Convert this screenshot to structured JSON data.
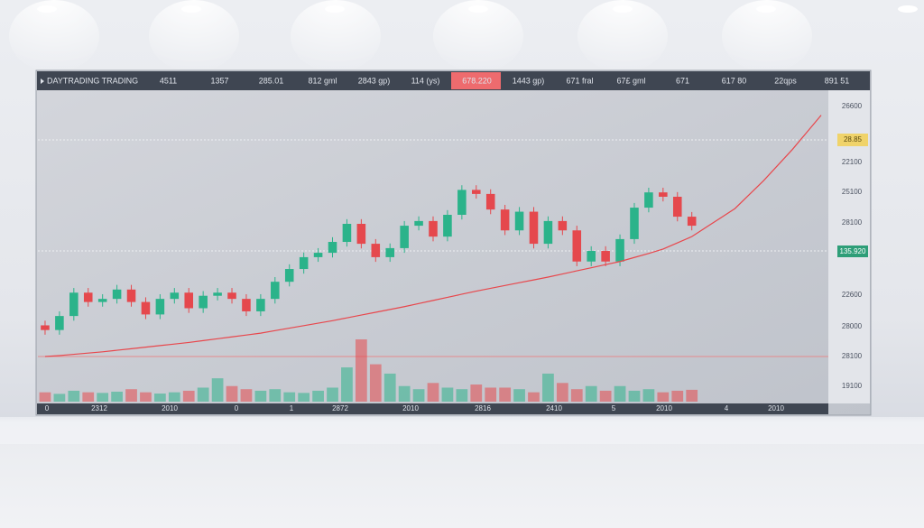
{
  "header": {
    "title": "DAYTRADING TRADING",
    "cells": [
      "4511",
      "1357",
      "285.01",
      "812 gml",
      "2843 gp)",
      "114 (ys)",
      "678.220",
      "1443 gp)",
      "671 fral",
      "67£ gml",
      "671",
      "617 80",
      "22qps",
      "891 51"
    ],
    "highlight": 6
  },
  "chart_data": {
    "type": "candlestick",
    "ylim": [
      0,
      100
    ],
    "up_color": "#2bb38a",
    "down_color": "#e5484d",
    "candles": {
      "open": [
        24.5,
        23,
        27.5,
        35,
        32,
        33,
        36,
        32,
        28,
        33,
        35,
        30,
        34,
        35,
        33,
        29,
        33,
        38.5,
        42.6,
        46.4,
        47.8,
        51.3,
        57.1,
        50.7,
        46.4,
        49.3,
        56.5,
        58,
        53,
        60,
        68,
        66.7,
        61.7,
        55,
        61,
        50.7,
        58,
        55,
        45,
        48.4,
        45,
        52.2,
        62.3,
        67.2,
        65.8,
        59.4
      ],
      "high": [
        26,
        29,
        36.5,
        36.5,
        34.5,
        37.5,
        37.5,
        33.5,
        34.5,
        36.5,
        36.5,
        35.5,
        36.5,
        36.5,
        34.5,
        34.5,
        40,
        44.1,
        47.9,
        49.3,
        52.8,
        58.6,
        58.6,
        52.2,
        50.8,
        58,
        59.5,
        59.5,
        61.5,
        69.5,
        69.5,
        68.2,
        63.2,
        62.5,
        62.5,
        59.5,
        59.5,
        56.5,
        49.9,
        49.9,
        53.7,
        63.8,
        68.7,
        68.7,
        67.3,
        60.9
      ],
      "low": [
        21.5,
        21.5,
        26,
        30.5,
        30.5,
        31.5,
        30.5,
        26.5,
        26.5,
        31.5,
        28.5,
        28.5,
        32.5,
        31.5,
        27.5,
        27.5,
        31.5,
        37,
        41.1,
        44.9,
        46.3,
        49.8,
        49.2,
        44.9,
        44.9,
        47.8,
        55,
        51.5,
        51.5,
        58.5,
        65.2,
        60.2,
        53.5,
        53.5,
        49.2,
        49.2,
        53.5,
        43.5,
        43.5,
        43.5,
        43.5,
        50.7,
        60.8,
        64.3,
        57.9,
        55
      ],
      "close": [
        23,
        27.5,
        35,
        32,
        33,
        36,
        32,
        28,
        33,
        35,
        30,
        34,
        35,
        33,
        29,
        33,
        38.5,
        42.6,
        46.4,
        47.8,
        51.3,
        57.1,
        50.7,
        46.4,
        49.3,
        56.5,
        58,
        53,
        60,
        68,
        66.7,
        61.7,
        55,
        61,
        50.7,
        58,
        55,
        45,
        48.4,
        45,
        52.2,
        62.3,
        67.2,
        65.8,
        59.4,
        56.5
      ]
    },
    "volume": [
      3,
      2.5,
      3.5,
      3,
      2.8,
      3.2,
      4,
      3,
      2.6,
      3,
      3.5,
      4.5,
      7.5,
      5,
      4,
      3.5,
      4,
      3,
      2.8,
      3.5,
      4.5,
      11,
      20,
      12,
      9,
      5,
      4,
      6,
      4.5,
      4,
      5.5,
      4.5,
      4.5,
      4,
      3,
      9,
      6,
      4,
      5,
      3.5,
      5,
      3.5,
      4,
      3,
      3.5,
      3.8
    ],
    "moving_average": {
      "color": "#e8474c",
      "values": [
        14.5,
        14.8,
        15.2,
        15.6,
        16,
        16.5,
        17,
        17.5,
        18,
        18.5,
        19,
        19.6,
        20.2,
        20.8,
        21.4,
        22,
        22.8,
        23.6,
        24.4,
        25.2,
        26,
        26.9,
        27.8,
        28.7,
        29.6,
        30.5,
        31.5,
        32.5,
        33.5,
        34.5,
        35.5,
        36.4,
        37.3,
        38.2,
        39.1,
        40,
        41,
        42,
        43,
        44,
        45,
        46.3,
        47.6,
        49,
        51,
        53,
        56,
        59,
        62,
        66.5,
        71,
        76,
        81,
        86.5,
        92
      ]
    },
    "y_labels": [
      "26600",
      "22100",
      "25100",
      "28100",
      "22600",
      "28000",
      "28100",
      "19100"
    ],
    "x_labels": [
      "0",
      "2312",
      "2010",
      "0",
      "1",
      "2872",
      "2010",
      "2816",
      "2410",
      "5",
      "2010",
      "4",
      "2010"
    ],
    "price_tags": [
      "28.85",
      "135.920"
    ]
  }
}
